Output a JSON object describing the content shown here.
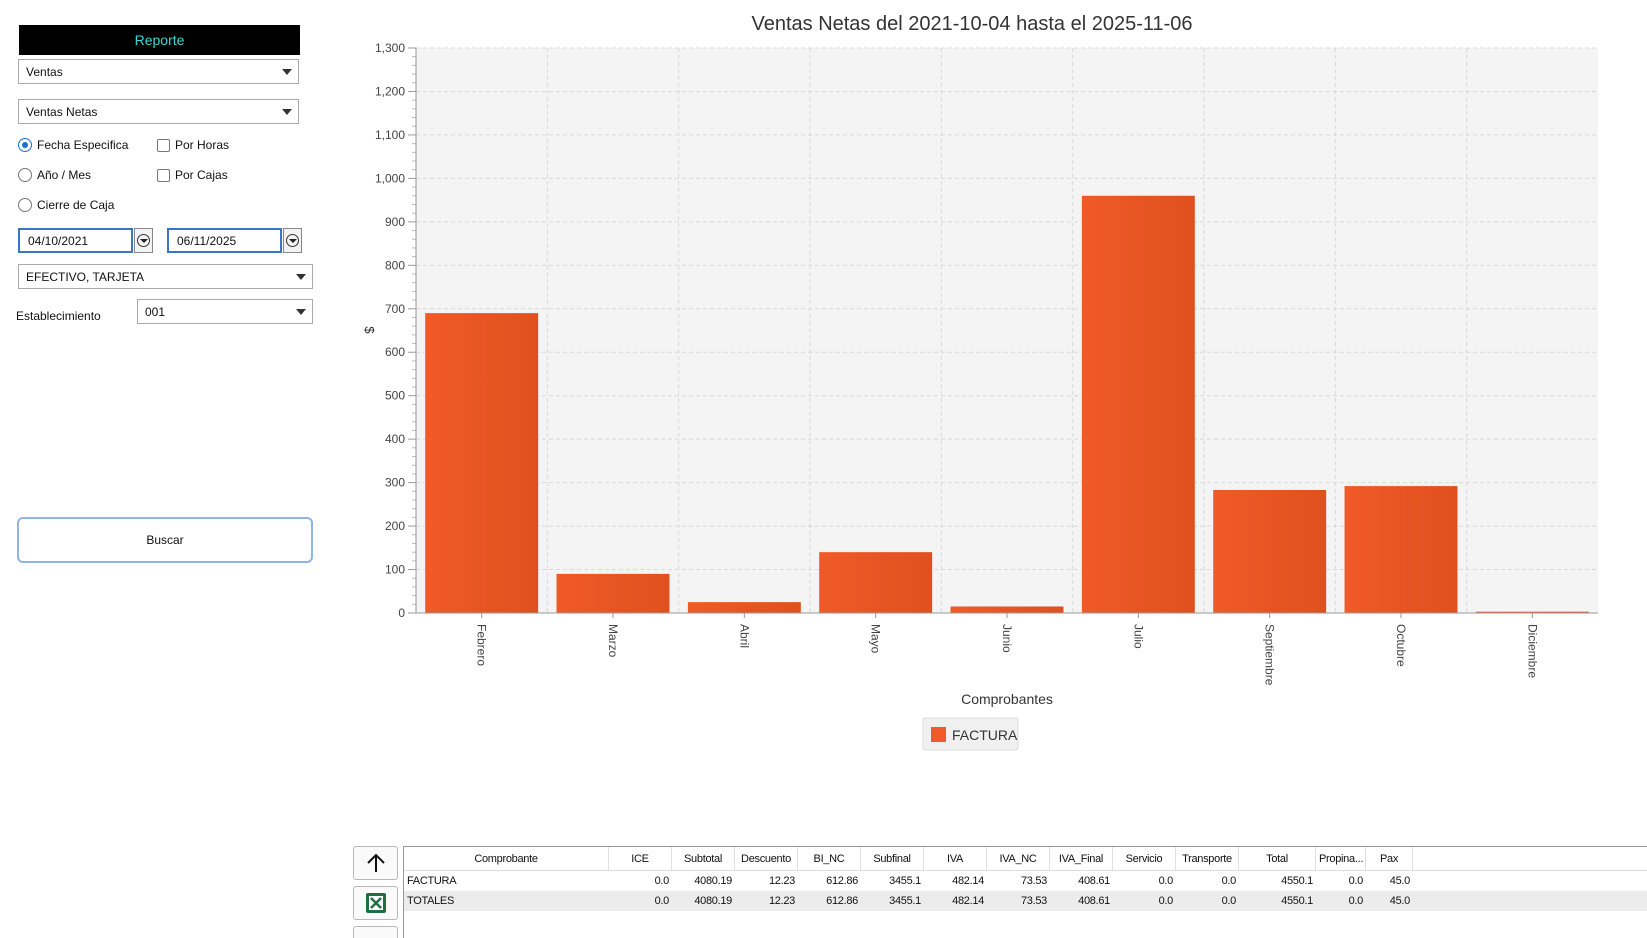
{
  "sidebar": {
    "header": "Reporte",
    "report_type": "Ventas",
    "report_subtype": "Ventas Netas",
    "options": {
      "fecha_especifica": "Fecha Especifica",
      "anio_mes": "Año / Mes",
      "cierre_caja": "Cierre de Caja",
      "por_horas": "Por Horas",
      "por_cajas": "Por Cajas"
    },
    "date_from": "04/10/2021",
    "date_to": "06/11/2025",
    "payment_types": "EFECTIVO, TARJETA",
    "establecimiento_label": "Establecimiento",
    "establecimiento_value": "001",
    "search_button": "Buscar"
  },
  "chart_data": {
    "type": "bar",
    "title": "Ventas Netas del 2021-10-04 hasta el 2025-11-06",
    "xlabel": "Comprobantes",
    "ylabel": "$",
    "ylim": [
      0,
      1300
    ],
    "yticks": [
      0,
      100,
      200,
      300,
      400,
      500,
      600,
      700,
      800,
      900,
      1000,
      1100,
      1200,
      1300
    ],
    "ytick_labels": [
      "0",
      "100",
      "200",
      "300",
      "400",
      "500",
      "600",
      "700",
      "800",
      "900",
      "1,000",
      "1,100",
      "1,200",
      "1,300"
    ],
    "categories": [
      "Febrero",
      "Marzo",
      "Abril",
      "Mayo",
      "Junio",
      "Julio",
      "Septiembre",
      "Octubre",
      "Diciembre"
    ],
    "series": [
      {
        "name": "FACTURA",
        "values": [
          690,
          90,
          25,
          140,
          15,
          960,
          283,
          292,
          3
        ]
      }
    ],
    "bar_color": "#f05a28",
    "grid": true,
    "legend": "bottom-center"
  },
  "table": {
    "columns": [
      "Comprobante",
      "ICE",
      "Subtotal",
      "Descuento",
      "BI_NC",
      "Subfinal",
      "IVA",
      "IVA_NC",
      "IVA_Final",
      "Servicio",
      "Transporte",
      "Total",
      "Propina...",
      "Pax"
    ],
    "rows": [
      [
        "FACTURA",
        "0.0",
        "4080.19",
        "12.23",
        "612.86",
        "3455.1",
        "482.14",
        "73.53",
        "408.61",
        "0.0",
        "0.0",
        "4550.1",
        "0.0",
        "45.0"
      ],
      [
        "TOTALES",
        "0.0",
        "4080.19",
        "12.23",
        "612.86",
        "3455.1",
        "482.14",
        "73.53",
        "408.61",
        "0.0",
        "0.0",
        "4550.1",
        "0.0",
        "45.0"
      ]
    ]
  },
  "icons": {
    "up": "arrow-up-icon",
    "excel": "excel-icon"
  }
}
